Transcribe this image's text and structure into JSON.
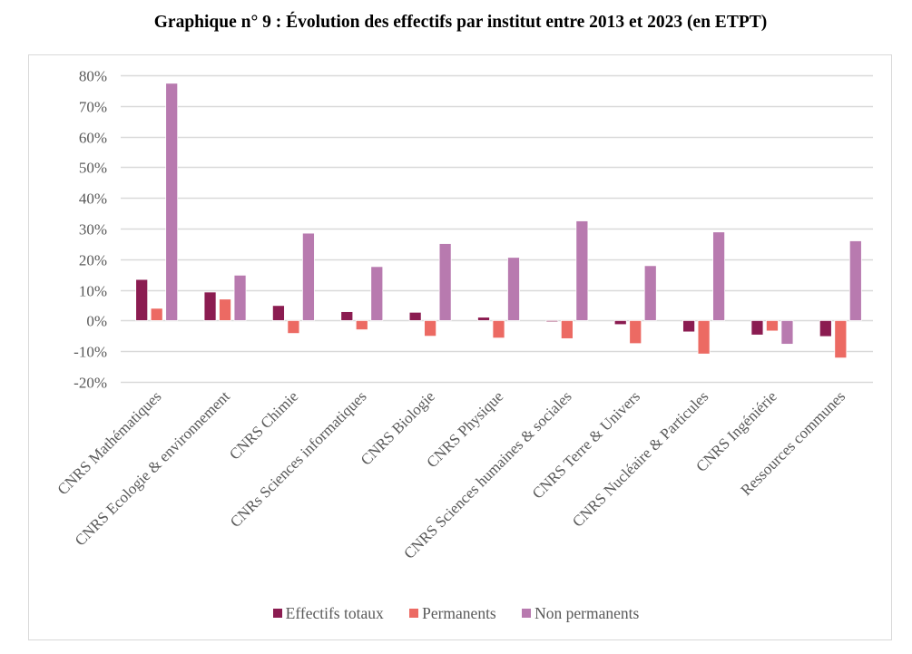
{
  "chart_data": {
    "type": "bar",
    "title": "Graphique n° 9 :  Évolution des effectifs par institut entre 2013 et 2023 (en ETPT)",
    "xlabel": "",
    "ylabel": "",
    "ylim": [
      -0.2,
      0.8
    ],
    "y_ticks": [
      -0.2,
      -0.1,
      0,
      0.1,
      0.2,
      0.3,
      0.4,
      0.5,
      0.6,
      0.7,
      0.8
    ],
    "y_tick_labels": [
      "-20%",
      "-10%",
      "0%",
      "10%",
      "20%",
      "30%",
      "40%",
      "50%",
      "60%",
      "70%",
      "80%"
    ],
    "grid": true,
    "legend_position": "bottom",
    "categories": [
      "CNRS Mathématiques",
      "CNRS Ecologie & environnement",
      "CNRS Chimie",
      "CNRs Sciences informatiques",
      "CNRS Biologie",
      "CNRS Physique",
      "CNRS Sciences humaines & sociales",
      "CNRS Terre & Univers",
      "CNRS Nucléaire & Particules",
      "CNRS Ingéniérie",
      "Ressources communes"
    ],
    "series": [
      {
        "name": "Effectifs totaux",
        "color": "#8b1c51",
        "values": [
          0.134,
          0.093,
          0.049,
          0.029,
          0.027,
          0.011,
          -0.004,
          -0.013,
          -0.037,
          -0.047,
          -0.052
        ]
      },
      {
        "name": "Permanents",
        "color": "#ec6a63",
        "values": [
          0.04,
          0.07,
          -0.042,
          -0.03,
          -0.051,
          -0.057,
          -0.059,
          -0.075,
          -0.109,
          -0.034,
          -0.122
        ]
      },
      {
        "name": "Non permanents",
        "color": "#b87aaf",
        "values": [
          0.774,
          0.148,
          0.285,
          0.176,
          0.251,
          0.206,
          0.325,
          0.179,
          0.289,
          -0.077,
          0.26
        ]
      }
    ]
  }
}
